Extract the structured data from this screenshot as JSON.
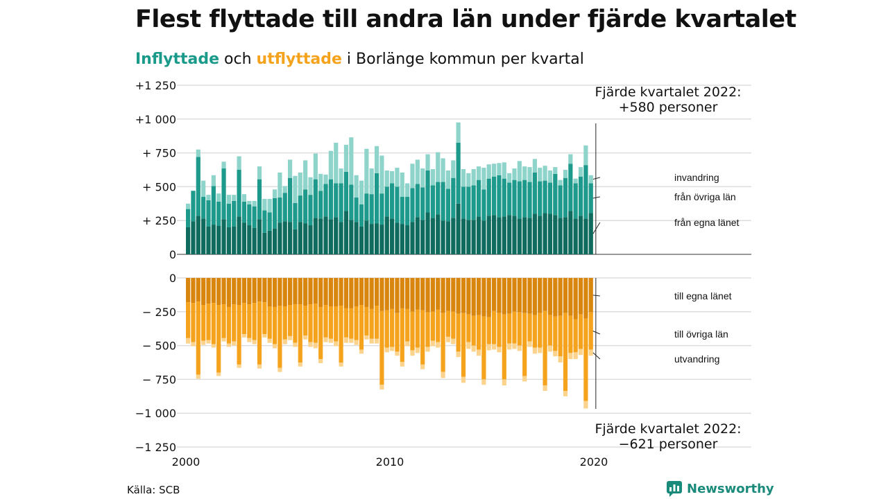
{
  "header": {
    "title": "Flest flyttade till andra län under fjärde kvartalet",
    "subtitle_in": "Inflyttade",
    "subtitle_mid": " och ",
    "subtitle_out": "utflyttade",
    "subtitle_rest": " i Borlänge kommun per kvartal"
  },
  "footer": {
    "source": "Källa: SCB",
    "brand": "Newsworthy"
  },
  "colors": {
    "in_own": "#0e6b5e",
    "in_other": "#1d9a8b",
    "in_immig": "#8fd4cb",
    "out_own": "#d9860f",
    "out_other": "#f5a31c",
    "out_emig": "#fbd38c",
    "accent_in": "#1a9a8a",
    "accent_out": "#f5a31c"
  },
  "chart_data": {
    "type": "bar",
    "stacked": true,
    "x_start_year": 2000,
    "quarters_per_year": 4,
    "x_ticks": [
      "2000",
      "2010",
      "2020"
    ],
    "y_ticks_top": [
      "+1 250",
      "+1 000",
      "+  750",
      "+  500",
      "+  250",
      "0"
    ],
    "y_ticks_bottom": [
      "0",
      "−  250",
      "−  500",
      "−  750",
      "−1 000",
      "−1 250"
    ],
    "ylim_top": [
      0,
      1250
    ],
    "ylim_bottom": [
      -1250,
      0
    ],
    "series_in": [
      {
        "name": "från egna länet",
        "values": [
          200,
          245,
          285,
          265,
          205,
          220,
          210,
          260,
          200,
          205,
          280,
          235,
          215,
          195,
          260,
          160,
          175,
          190,
          235,
          245,
          240,
          185,
          240,
          230,
          215,
          270,
          265,
          280,
          260,
          275,
          240,
          320,
          255,
          240,
          205,
          250,
          225,
          230,
          220,
          280,
          265,
          235,
          225,
          215,
          240,
          275,
          255,
          310,
          270,
          295,
          250,
          245,
          270,
          375,
          265,
          255,
          255,
          280,
          250,
          285,
          290,
          275,
          280,
          290,
          285,
          265,
          275,
          270,
          300,
          285,
          305,
          300,
          290,
          270,
          275,
          320,
          265,
          285,
          265,
          305
        ]
      },
      {
        "name": "från övriga län",
        "values": [
          135,
          225,
          435,
          160,
          195,
          285,
          180,
          375,
          175,
          190,
          345,
          155,
          155,
          160,
          295,
          165,
          135,
          225,
          185,
          210,
          325,
          195,
          195,
          250,
          225,
          285,
          205,
          240,
          295,
          250,
          285,
          290,
          260,
          180,
          165,
          200,
          220,
          370,
          230,
          220,
          260,
          265,
          200,
          210,
          250,
          245,
          240,
          310,
          240,
          240,
          285,
          240,
          295,
          450,
          235,
          245,
          255,
          270,
          230,
          275,
          285,
          310,
          280,
          240,
          265,
          275,
          275,
          265,
          305,
          255,
          240,
          230,
          305,
          240,
          290,
          350,
          260,
          290,
          395,
          220
        ]
      },
      {
        "name": "invandring",
        "values": [
          40,
          0,
          55,
          120,
          40,
          80,
          60,
          50,
          65,
          45,
          100,
          55,
          25,
          40,
          95,
          85,
          100,
          65,
          185,
          50,
          135,
          200,
          170,
          215,
          130,
          190,
          125,
          70,
          210,
          300,
          110,
          200,
          350,
          165,
          175,
          330,
          190,
          200,
          280,
          120,
          90,
          140,
          180,
          100,
          180,
          180,
          140,
          120,
          120,
          220,
          175,
          135,
          130,
          150,
          130,
          100,
          120,
          100,
          160,
          105,
          95,
          90,
          120,
          70,
          85,
          150,
          100,
          110,
          100,
          100,
          110,
          90,
          50,
          40,
          60,
          70,
          35,
          70,
          145,
          60
        ]
      }
    ],
    "series_out": [
      {
        "name": "till egna länet",
        "values": [
          -180,
          -185,
          -175,
          -200,
          -190,
          -185,
          -200,
          -195,
          -215,
          -195,
          -200,
          -185,
          -195,
          -185,
          -175,
          -180,
          -210,
          -215,
          -205,
          -210,
          -200,
          -195,
          -195,
          -205,
          -195,
          -190,
          -215,
          -200,
          -210,
          -210,
          -205,
          -225,
          -225,
          -210,
          -200,
          -215,
          -230,
          -205,
          -245,
          -240,
          -230,
          -260,
          -225,
          -230,
          -250,
          -235,
          -240,
          -255,
          -250,
          -235,
          -260,
          -245,
          -250,
          -265,
          -260,
          -270,
          -280,
          -275,
          -285,
          -290,
          -245,
          -260,
          -270,
          -265,
          -250,
          -255,
          -260,
          -265,
          -275,
          -260,
          -245,
          -275,
          -285,
          -280,
          -260,
          -280,
          -305,
          -270,
          -300,
          -255
        ]
      },
      {
        "name": "till övriga län",
        "values": [
          -265,
          -290,
          -540,
          -265,
          -270,
          -305,
          -500,
          -250,
          -270,
          -275,
          -440,
          -230,
          -250,
          -275,
          -465,
          -235,
          -240,
          -275,
          -460,
          -245,
          -230,
          -285,
          -430,
          -220,
          -280,
          -290,
          -385,
          -240,
          -240,
          -260,
          -420,
          -215,
          -225,
          -250,
          -330,
          -210,
          -220,
          -245,
          -545,
          -275,
          -280,
          -285,
          -395,
          -240,
          -285,
          -280,
          -400,
          -255,
          -215,
          -240,
          -435,
          -190,
          -200,
          -280,
          -470,
          -205,
          -220,
          -255,
          -465,
          -200,
          -245,
          -250,
          -480,
          -220,
          -235,
          -245,
          -465,
          -205,
          -240,
          -255,
          -550,
          -225,
          -255,
          -300,
          -575,
          -275,
          -245,
          -255,
          -610,
          -275
        ]
      },
      {
        "name": "utvandring",
        "values": [
          -40,
          -30,
          -30,
          -30,
          -25,
          -25,
          -25,
          -25,
          -25,
          -30,
          -25,
          -25,
          -30,
          -30,
          -30,
          -25,
          -30,
          -30,
          -30,
          -35,
          -30,
          -30,
          -30,
          -30,
          -35,
          -40,
          -30,
          -35,
          -30,
          -35,
          -30,
          -40,
          -30,
          -35,
          -30,
          -30,
          -35,
          -35,
          -35,
          -35,
          -30,
          -30,
          -35,
          -35,
          -40,
          -40,
          -35,
          -35,
          -40,
          -40,
          -45,
          -40,
          -40,
          -40,
          -45,
          -50,
          -45,
          -45,
          -40,
          -45,
          -40,
          -40,
          -45,
          -45,
          -40,
          -40,
          -40,
          -40,
          -45,
          -40,
          -40,
          -45,
          -40,
          -45,
          -40,
          -45,
          -50,
          -45,
          -55,
          -45
        ]
      }
    ],
    "annotations": {
      "top_line1": "Fjärde kvartalet 2022:",
      "top_line2": "+580 personer",
      "bottom_line1": "Fjärde kvartalet 2022:",
      "bottom_line2": "−621 personer"
    }
  }
}
